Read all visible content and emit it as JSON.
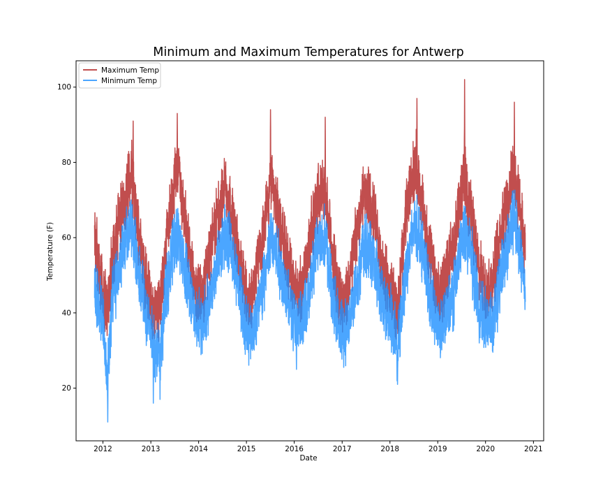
{
  "chart_data": {
    "type": "line",
    "title": "Minimum and Maximum Temperatures for Antwerp",
    "xlabel": "Date",
    "ylabel": "Temperature (F)",
    "x_ticks": [
      "2012",
      "2013",
      "2014",
      "2015",
      "2016",
      "2017",
      "2018",
      "2019",
      "2020",
      "2021"
    ],
    "y_ticks": [
      20,
      40,
      60,
      80,
      100
    ],
    "xlim": [
      "2011-06-10",
      "2021-03-20"
    ],
    "ylim": [
      6,
      107
    ],
    "grid": false,
    "legend_position": "top-left",
    "series": [
      {
        "name": "Maximum Temp",
        "color": "#b22222",
        "anchors": [
          [
            "2011-10-29",
            60
          ],
          [
            "2011-12-01",
            52
          ],
          [
            "2012-01-01",
            46
          ],
          [
            "2012-02-01",
            40
          ],
          [
            "2012-03-15",
            55
          ],
          [
            "2012-05-01",
            64
          ],
          [
            "2012-06-15",
            70
          ],
          [
            "2012-08-01",
            78
          ],
          [
            "2012-09-15",
            66
          ],
          [
            "2012-11-01",
            52
          ],
          [
            "2012-12-15",
            45
          ],
          [
            "2013-02-01",
            40
          ],
          [
            "2013-03-15",
            42
          ],
          [
            "2013-05-01",
            60
          ],
          [
            "2013-06-15",
            72
          ],
          [
            "2013-07-25",
            80
          ],
          [
            "2013-09-15",
            66
          ],
          [
            "2013-11-01",
            52
          ],
          [
            "2013-12-15",
            46
          ],
          [
            "2014-02-01",
            45
          ],
          [
            "2014-04-01",
            56
          ],
          [
            "2014-06-01",
            67
          ],
          [
            "2014-07-25",
            74
          ],
          [
            "2014-09-15",
            66
          ],
          [
            "2014-11-01",
            55
          ],
          [
            "2015-01-15",
            43
          ],
          [
            "2015-03-01",
            47
          ],
          [
            "2015-05-01",
            60
          ],
          [
            "2015-07-15",
            75
          ],
          [
            "2015-09-01",
            66
          ],
          [
            "2015-11-01",
            55
          ],
          [
            "2016-01-15",
            45
          ],
          [
            "2016-03-01",
            47
          ],
          [
            "2016-05-01",
            60
          ],
          [
            "2016-07-01",
            71
          ],
          [
            "2016-08-25",
            73
          ],
          [
            "2016-10-15",
            56
          ],
          [
            "2016-12-15",
            44
          ],
          [
            "2017-02-01",
            43
          ],
          [
            "2017-04-01",
            57
          ],
          [
            "2017-06-15",
            72
          ],
          [
            "2017-08-01",
            70
          ],
          [
            "2017-09-15",
            63
          ],
          [
            "2017-11-15",
            50
          ],
          [
            "2018-01-15",
            46
          ],
          [
            "2018-03-01",
            39
          ],
          [
            "2018-05-01",
            66
          ],
          [
            "2018-07-15",
            80
          ],
          [
            "2018-09-01",
            70
          ],
          [
            "2018-11-01",
            55
          ],
          [
            "2019-01-15",
            43
          ],
          [
            "2019-03-01",
            50
          ],
          [
            "2019-05-01",
            58
          ],
          [
            "2019-07-25",
            76
          ],
          [
            "2019-09-15",
            66
          ],
          [
            "2019-11-15",
            50
          ],
          [
            "2020-01-15",
            47
          ],
          [
            "2020-03-01",
            49
          ],
          [
            "2020-05-01",
            64
          ],
          [
            "2020-06-15",
            70
          ],
          [
            "2020-08-10",
            77
          ],
          [
            "2020-09-25",
            65
          ],
          [
            "2020-10-31",
            58
          ]
        ]
      },
      {
        "name": "Minimum Temp",
        "color": "#1e90ff",
        "anchors": [
          [
            "2011-10-29",
            48
          ],
          [
            "2011-12-01",
            42
          ],
          [
            "2012-01-01",
            38
          ],
          [
            "2012-02-01",
            22
          ],
          [
            "2012-03-15",
            44
          ],
          [
            "2012-05-01",
            51
          ],
          [
            "2012-06-15",
            58
          ],
          [
            "2012-08-01",
            63
          ],
          [
            "2012-09-15",
            55
          ],
          [
            "2012-11-01",
            45
          ],
          [
            "2012-12-15",
            37
          ],
          [
            "2013-02-01",
            30
          ],
          [
            "2013-03-15",
            30
          ],
          [
            "2013-05-01",
            47
          ],
          [
            "2013-06-15",
            56
          ],
          [
            "2013-07-25",
            62
          ],
          [
            "2013-09-15",
            52
          ],
          [
            "2013-11-01",
            45
          ],
          [
            "2013-12-15",
            38
          ],
          [
            "2014-02-01",
            37
          ],
          [
            "2014-04-01",
            44
          ],
          [
            "2014-06-01",
            55
          ],
          [
            "2014-07-25",
            62
          ],
          [
            "2014-09-15",
            55
          ],
          [
            "2014-11-01",
            47
          ],
          [
            "2015-01-15",
            34
          ],
          [
            "2015-03-01",
            37
          ],
          [
            "2015-05-01",
            46
          ],
          [
            "2015-07-15",
            61
          ],
          [
            "2015-09-01",
            54
          ],
          [
            "2015-11-01",
            46
          ],
          [
            "2016-01-15",
            37
          ],
          [
            "2016-03-01",
            37
          ],
          [
            "2016-05-01",
            47
          ],
          [
            "2016-07-01",
            59
          ],
          [
            "2016-08-25",
            60
          ],
          [
            "2016-10-15",
            45
          ],
          [
            "2016-12-15",
            35
          ],
          [
            "2017-02-01",
            35
          ],
          [
            "2017-04-01",
            44
          ],
          [
            "2017-06-15",
            58
          ],
          [
            "2017-08-01",
            57
          ],
          [
            "2017-09-15",
            52
          ],
          [
            "2017-11-15",
            42
          ],
          [
            "2018-01-15",
            39
          ],
          [
            "2018-03-01",
            30
          ],
          [
            "2018-05-01",
            52
          ],
          [
            "2018-07-15",
            64
          ],
          [
            "2018-09-01",
            58
          ],
          [
            "2018-11-01",
            45
          ],
          [
            "2019-01-15",
            35
          ],
          [
            "2019-03-01",
            39
          ],
          [
            "2019-05-01",
            45
          ],
          [
            "2019-07-25",
            63
          ],
          [
            "2019-09-15",
            55
          ],
          [
            "2019-11-15",
            41
          ],
          [
            "2020-01-15",
            38
          ],
          [
            "2020-03-01",
            38
          ],
          [
            "2020-05-01",
            50
          ],
          [
            "2020-06-15",
            58
          ],
          [
            "2020-08-10",
            66
          ],
          [
            "2020-09-25",
            55
          ],
          [
            "2020-10-31",
            48
          ]
        ]
      }
    ],
    "notable_points": [
      {
        "series": "Maximum Temp",
        "date": "2019-07-25",
        "value": 102
      },
      {
        "series": "Maximum Temp",
        "date": "2018-07-26",
        "value": 97
      },
      {
        "series": "Maximum Temp",
        "date": "2020-08-08",
        "value": 96
      },
      {
        "series": "Maximum Temp",
        "date": "2015-07-04",
        "value": 94
      },
      {
        "series": "Maximum Temp",
        "date": "2013-07-22",
        "value": 93
      },
      {
        "series": "Maximum Temp",
        "date": "2016-08-25",
        "value": 92
      },
      {
        "series": "Maximum Temp",
        "date": "2012-08-19",
        "value": 91
      },
      {
        "series": "Minimum Temp",
        "date": "2012-02-07",
        "value": 11
      },
      {
        "series": "Minimum Temp",
        "date": "2013-01-20",
        "value": 16
      },
      {
        "series": "Minimum Temp",
        "date": "2013-03-12",
        "value": 17
      },
      {
        "series": "Minimum Temp",
        "date": "2018-02-28",
        "value": 21
      },
      {
        "series": "Minimum Temp",
        "date": "2016-01-18",
        "value": 25
      }
    ]
  }
}
